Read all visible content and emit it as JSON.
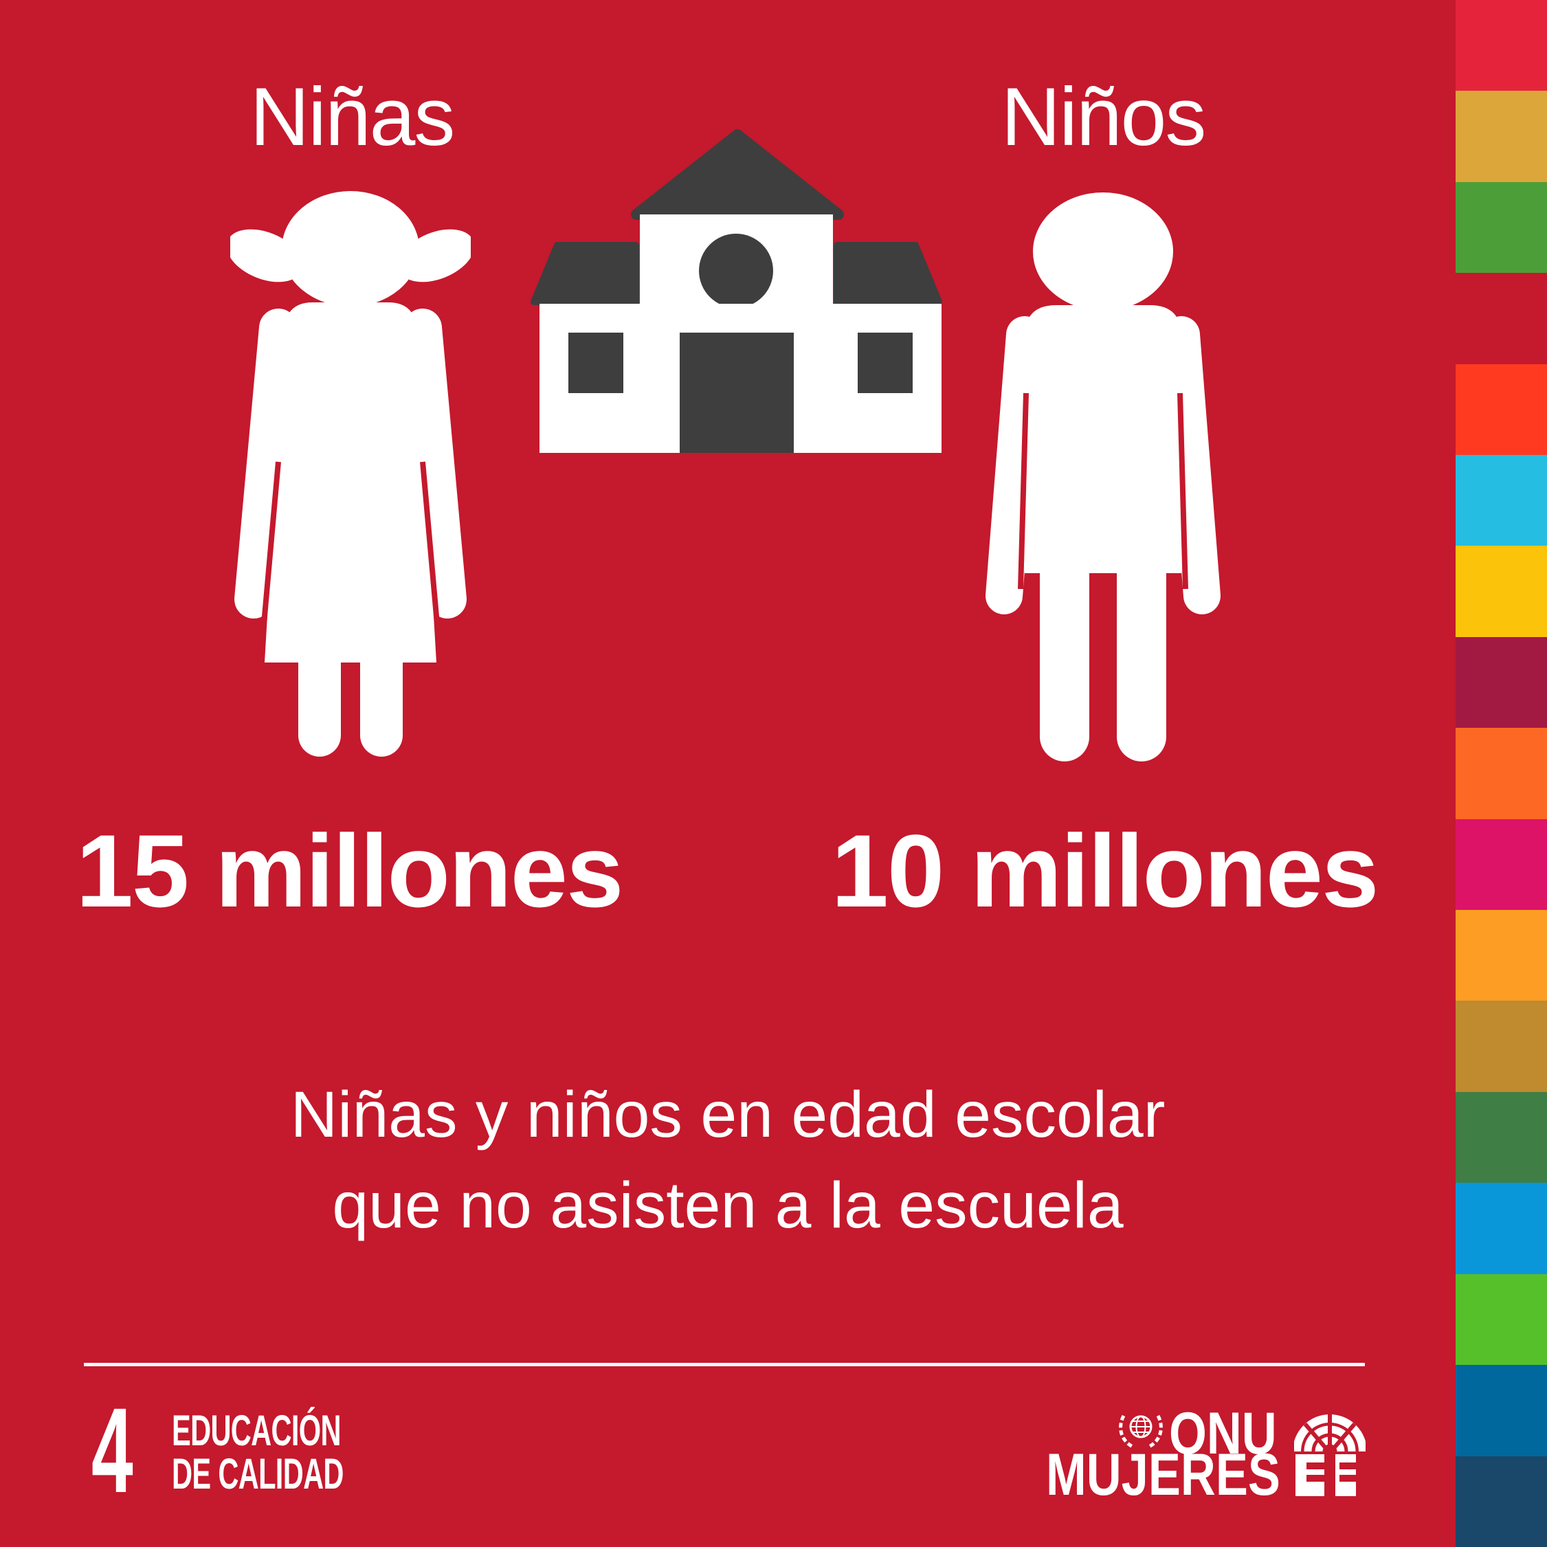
{
  "poster": {
    "background_color": "#C5192D",
    "figure_color": "#FFFFFF",
    "building_color": "#3E3E3E"
  },
  "chart_data": {
    "type": "pictograph",
    "title": "Niñas y niños en edad escolar que no asisten a la escuela",
    "categories": [
      "Niñas",
      "Niños"
    ],
    "values": [
      15,
      10
    ],
    "unit": "millones",
    "value_labels": [
      "15 millones",
      "10 millones"
    ],
    "icons": [
      "girl-figure",
      "school-building",
      "boy-figure"
    ],
    "legend_position": "none",
    "grid": false
  },
  "caption": {
    "line1": "Niñas y niños en edad escolar",
    "line2": "que no asisten a la escuela"
  },
  "footer": {
    "sdg_number": "4",
    "sdg_title_line1": "EDUCACIÓN",
    "sdg_title_line2": "DE CALIDAD",
    "org_name_line1": "ONU",
    "org_name_line2": "MUJERES"
  },
  "sdg_strip": {
    "colors": [
      "#E5243B",
      "#DDA63A",
      "#4C9F38",
      "#C5192D",
      "#FF3A21",
      "#26BDE2",
      "#FCC30B",
      "#A21942",
      "#FD6925",
      "#DD1367",
      "#FD9D24",
      "#BF8B2E",
      "#3F7E44",
      "#0A97D9",
      "#56C02B",
      "#00689D",
      "#19486A"
    ]
  }
}
